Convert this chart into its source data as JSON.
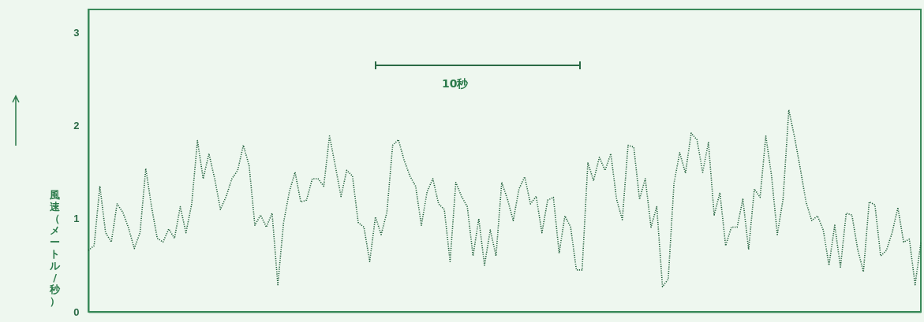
{
  "chart_data": {
    "type": "line",
    "ylabel": "風速（メートル/秒）",
    "annotations": [
      "10秒"
    ],
    "categories": [
      null,
      null,
      null,
      null,
      null,
      null,
      null,
      null,
      null,
      null,
      null,
      null,
      null,
      null,
      null,
      null,
      null,
      null,
      null,
      null,
      null,
      null,
      null,
      null,
      null,
      null,
      null,
      null,
      null,
      null,
      null,
      null,
      null,
      null,
      null,
      null,
      null,
      null,
      null,
      null,
      null,
      null,
      null,
      null,
      null,
      null,
      null,
      null,
      null,
      null,
      null,
      null,
      null,
      null,
      null,
      null,
      null,
      null,
      null,
      null,
      null,
      null,
      null,
      null,
      null,
      null,
      null,
      null,
      null,
      null,
      null,
      null,
      null,
      null,
      null,
      null,
      null,
      null,
      null,
      null,
      null,
      null,
      null,
      null,
      null,
      null,
      null,
      null,
      null,
      null,
      null,
      null,
      null,
      null,
      null,
      null,
      null,
      null,
      null,
      null,
      null,
      null,
      null,
      null,
      null,
      null,
      null,
      null,
      null,
      null,
      null,
      null,
      null,
      null,
      null,
      null,
      null,
      null,
      null,
      null,
      null,
      null,
      null,
      null,
      null,
      null,
      null,
      null,
      null,
      null,
      null,
      null,
      null,
      null,
      null,
      null,
      null,
      null,
      null,
      null,
      null,
      null,
      null,
      null,
      null,
      null
    ],
    "ylim": [
      0,
      3.25
    ],
    "yticks": [
      0,
      1,
      2,
      3
    ],
    "tick_labels": "y",
    "grid": false,
    "line_style": "dotted",
    "series": [
      {
        "color": "#1f5e3a",
        "values": [
          0.66,
          0.71,
          1.35,
          0.85,
          0.75,
          1.16,
          1.07,
          0.9,
          0.68,
          0.85,
          1.54,
          1.13,
          0.79,
          0.75,
          0.89,
          0.79,
          1.13,
          0.85,
          1.16,
          1.84,
          1.43,
          1.7,
          1.43,
          1.1,
          1.24,
          1.43,
          1.52,
          1.79,
          1.57,
          0.93,
          1.04,
          0.91,
          1.06,
          0.29,
          0.96,
          1.29,
          1.5,
          1.18,
          1.2,
          1.43,
          1.43,
          1.35,
          1.89,
          1.57,
          1.24,
          1.52,
          1.46,
          0.96,
          0.91,
          0.54,
          1.02,
          0.83,
          1.07,
          1.79,
          1.85,
          1.63,
          1.46,
          1.35,
          0.93,
          1.29,
          1.43,
          1.16,
          1.1,
          0.54,
          1.39,
          1.24,
          1.13,
          0.6,
          1.0,
          0.5,
          0.88,
          0.6,
          1.39,
          1.21,
          0.98,
          1.32,
          1.45,
          1.16,
          1.24,
          0.85,
          1.2,
          1.23,
          0.63,
          1.03,
          0.91,
          0.45,
          0.45,
          1.6,
          1.41,
          1.66,
          1.52,
          1.7,
          1.21,
          0.99,
          1.79,
          1.77,
          1.21,
          1.43,
          0.91,
          1.13,
          0.27,
          0.35,
          1.38,
          1.71,
          1.49,
          1.92,
          1.85,
          1.5,
          1.82,
          1.04,
          1.28,
          0.71,
          0.91,
          0.91,
          1.21,
          0.67,
          1.32,
          1.23,
          1.89,
          1.46,
          0.83,
          1.21,
          2.17,
          1.88,
          1.54,
          1.18,
          0.98,
          1.03,
          0.88,
          0.5,
          0.93,
          0.48,
          1.06,
          1.04,
          0.67,
          0.43,
          1.18,
          1.15,
          0.6,
          0.66,
          0.85,
          1.12,
          0.75,
          0.78,
          0.29,
          0.74
        ]
      }
    ]
  }
}
